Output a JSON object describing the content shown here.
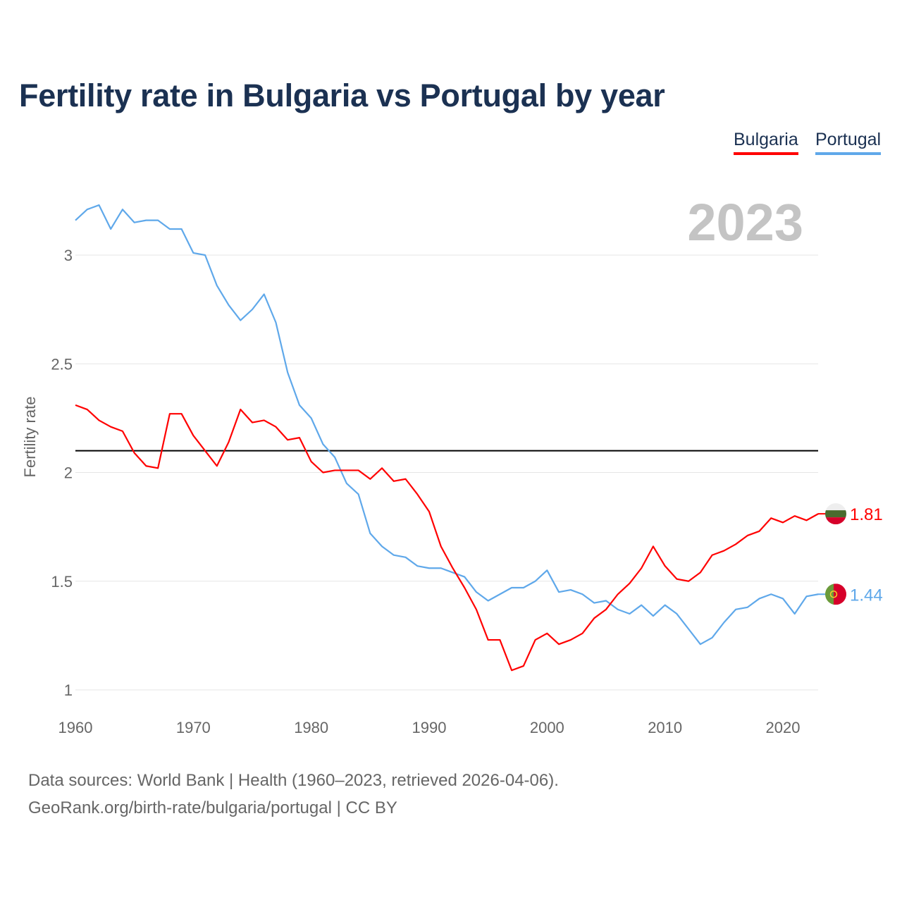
{
  "chart_data": {
    "type": "line",
    "title": "Fertility rate in Bulgaria vs Portugal by year",
    "xlabel": "",
    "ylabel": "Fertility rate",
    "xlim": [
      1960,
      2023
    ],
    "ylim": [
      1,
      3.25
    ],
    "x_ticks": [
      "1960",
      "1970",
      "1980",
      "1990",
      "2000",
      "2010",
      "2020"
    ],
    "y_ticks": [
      "1",
      "1.5",
      "2",
      "2.5",
      "3"
    ],
    "grid": true,
    "legend_position": "top-right",
    "year_label": "2023",
    "reference_line": 2.1,
    "x": [
      1960,
      1961,
      1962,
      1963,
      1964,
      1965,
      1966,
      1967,
      1968,
      1969,
      1970,
      1971,
      1972,
      1973,
      1974,
      1975,
      1976,
      1977,
      1978,
      1979,
      1980,
      1981,
      1982,
      1983,
      1984,
      1985,
      1986,
      1987,
      1988,
      1989,
      1990,
      1991,
      1992,
      1993,
      1994,
      1995,
      1996,
      1997,
      1998,
      1999,
      2000,
      2001,
      2002,
      2003,
      2004,
      2005,
      2006,
      2007,
      2008,
      2009,
      2010,
      2011,
      2012,
      2013,
      2014,
      2015,
      2016,
      2017,
      2018,
      2019,
      2020,
      2021,
      2022,
      2023
    ],
    "series": [
      {
        "name": "Bulgaria",
        "color": "#ff0000",
        "end_label": "1.81",
        "values": [
          2.31,
          2.29,
          2.24,
          2.21,
          2.19,
          2.09,
          2.03,
          2.02,
          2.27,
          2.27,
          2.17,
          2.1,
          2.03,
          2.14,
          2.29,
          2.23,
          2.24,
          2.21,
          2.15,
          2.16,
          2.05,
          2.0,
          2.01,
          2.01,
          2.01,
          1.97,
          2.02,
          1.96,
          1.97,
          1.9,
          1.82,
          1.66,
          1.56,
          1.47,
          1.37,
          1.23,
          1.23,
          1.09,
          1.11,
          1.23,
          1.26,
          1.21,
          1.23,
          1.26,
          1.33,
          1.37,
          1.44,
          1.49,
          1.56,
          1.66,
          1.57,
          1.51,
          1.5,
          1.54,
          1.62,
          1.64,
          1.67,
          1.71,
          1.73,
          1.79,
          1.77,
          1.8,
          1.78,
          1.81
        ]
      },
      {
        "name": "Portugal",
        "color": "#5fa8ea",
        "end_label": "1.44",
        "values": [
          3.16,
          3.21,
          3.23,
          3.12,
          3.21,
          3.15,
          3.16,
          3.16,
          3.12,
          3.12,
          3.01,
          3.0,
          2.86,
          2.77,
          2.7,
          2.75,
          2.82,
          2.69,
          2.46,
          2.31,
          2.25,
          2.13,
          2.07,
          1.95,
          1.9,
          1.72,
          1.66,
          1.62,
          1.61,
          1.57,
          1.56,
          1.56,
          1.54,
          1.52,
          1.45,
          1.41,
          1.44,
          1.47,
          1.47,
          1.5,
          1.55,
          1.45,
          1.46,
          1.44,
          1.4,
          1.41,
          1.37,
          1.35,
          1.39,
          1.34,
          1.39,
          1.35,
          1.28,
          1.21,
          1.24,
          1.31,
          1.37,
          1.38,
          1.42,
          1.44,
          1.42,
          1.35,
          1.43,
          1.44
        ]
      }
    ]
  },
  "sources": {
    "line1": "Data sources: World Bank | Health (1960–2023, retrieved 2026-04-06).",
    "line2": "GeoRank.org/birth-rate/bulgaria/portugal | CC BY"
  }
}
